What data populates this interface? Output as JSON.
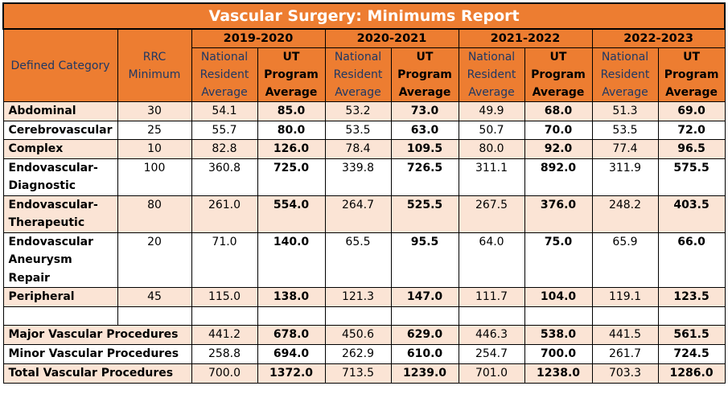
{
  "title": "Vascular Surgery: Minimums Report",
  "headers": {
    "defined_category": "Defined Category",
    "rrc_minimum": "RRC Minimum",
    "national": "National Resident Average",
    "ut": "UT Program Average"
  },
  "years": [
    "2019-2020",
    "2020-2021",
    "2021-2022",
    "2022-2023"
  ],
  "rows": [
    {
      "category": "Abdominal",
      "rrc": "30",
      "values": [
        "54.1",
        "85.0",
        "53.2",
        "73.0",
        "49.9",
        "68.0",
        "51.3",
        "69.0"
      ]
    },
    {
      "category": "Cerebrovascular",
      "rrc": "25",
      "values": [
        "55.7",
        "80.0",
        "53.5",
        "63.0",
        "50.7",
        "70.0",
        "53.5",
        "72.0"
      ]
    },
    {
      "category": "Complex",
      "rrc": "10",
      "values": [
        "82.8",
        "126.0",
        "78.4",
        "109.5",
        "80.0",
        "92.0",
        "77.4",
        "96.5"
      ]
    },
    {
      "category": "Endovascular-Diagnostic",
      "rrc": "100",
      "values": [
        "360.8",
        "725.0",
        "339.8",
        "726.5",
        "311.1",
        "892.0",
        "311.9",
        "575.5"
      ]
    },
    {
      "category": "Endovascular-Therapeutic",
      "rrc": "80",
      "values": [
        "261.0",
        "554.0",
        "264.7",
        "525.5",
        "267.5",
        "376.0",
        "248.2",
        "403.5"
      ]
    },
    {
      "category": "Endovascular Aneurysm Repair",
      "rrc": "20",
      "values": [
        "71.0",
        "140.0",
        "65.5",
        "95.5",
        "64.0",
        "75.0",
        "65.9",
        "66.0"
      ]
    },
    {
      "category": "Peripheral",
      "rrc": "45",
      "values": [
        "115.0",
        "138.0",
        "121.3",
        "147.0",
        "111.7",
        "104.0",
        "119.1",
        "123.5"
      ]
    }
  ],
  "summary_rows": [
    {
      "category": "Major Vascular Procedures",
      "values": [
        "441.2",
        "678.0",
        "450.6",
        "629.0",
        "446.3",
        "538.0",
        "441.5",
        "561.5"
      ]
    },
    {
      "category": "Minor Vascular Procedures",
      "values": [
        "258.8",
        "694.0",
        "262.9",
        "610.0",
        "254.7",
        "700.0",
        "261.7",
        "724.5"
      ]
    },
    {
      "category": "Total Vascular Procedures",
      "values": [
        "700.0",
        "1372.0",
        "713.5",
        "1239.0",
        "701.0",
        "1238.0",
        "703.3",
        "1286.0"
      ]
    }
  ]
}
